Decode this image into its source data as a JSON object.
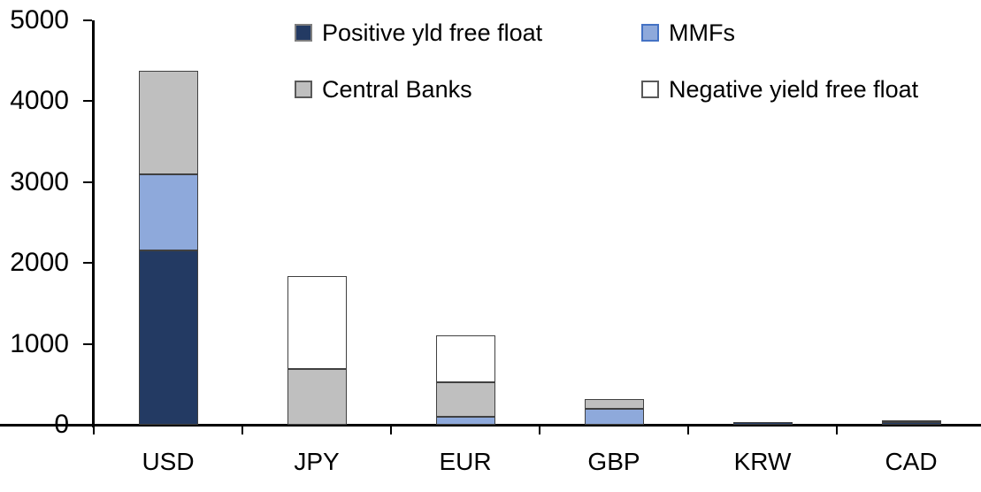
{
  "page": {
    "background": "#FFFFFF",
    "text_color": "#000000",
    "axis_color": "#000000",
    "segment_outline": "#404040"
  },
  "chart_data": {
    "type": "bar",
    "stacked": true,
    "title": "",
    "xlabel": "",
    "ylabel": "",
    "categories": [
      "USD",
      "JPY",
      "EUR",
      "GBP",
      "KRW",
      "CAD"
    ],
    "series": [
      {
        "name": "Positive yld free float",
        "color": "#233A63",
        "border_color": "#7F7F7F",
        "values": [
          2150,
          0,
          0,
          0,
          35,
          30
        ]
      },
      {
        "name": "MMFs",
        "color": "#8EA9DB",
        "border_color": "#4472C4",
        "values": [
          950,
          0,
          100,
          200,
          0,
          0
        ]
      },
      {
        "name": "Central Banks",
        "color": "#BFBFBF",
        "border_color": "#595959",
        "values": [
          1280,
          690,
          425,
          120,
          0,
          25
        ]
      },
      {
        "name": "Negative yield free float",
        "color": "#FFFFFF",
        "border_color": "#595959",
        "values": [
          0,
          1150,
          580,
          0,
          0,
          0
        ]
      }
    ],
    "totals": [
      4380,
      1840,
      1105,
      320,
      35,
      55
    ],
    "ylim": [
      0,
      5000
    ],
    "ytick_values": [
      0,
      1000,
      2000,
      3000,
      4000,
      5000
    ],
    "ytick_labels": [
      "0",
      "1000",
      "2000",
      "3000",
      "4000",
      "5000"
    ],
    "grid": false,
    "legend_position": "top"
  }
}
